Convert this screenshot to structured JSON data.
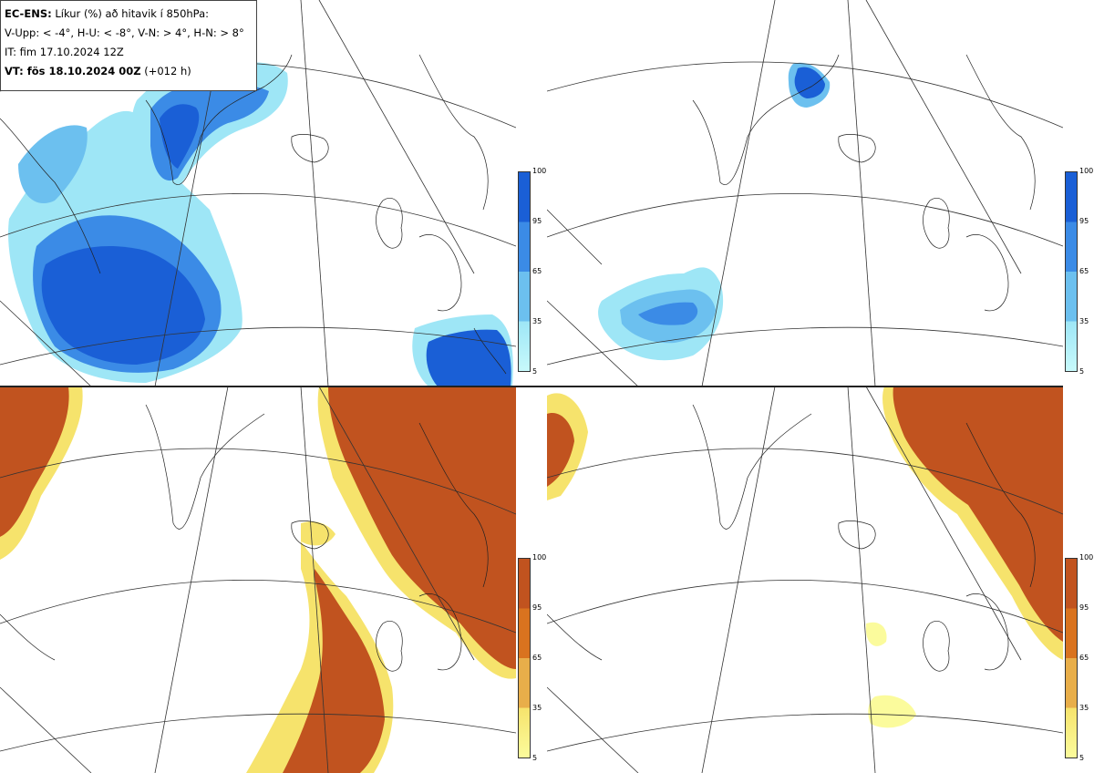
{
  "legend": {
    "line1_bold": "EC-ENS:",
    "line1_text": "Líkur (%) að hitavik í 850hPa:",
    "line2": "V-Upp: < -4°, H-U: < -8°, V-N: > 4°, H-N: > 8°",
    "line3": "IT: fim 17.10.2024 12Z",
    "line4_bold": "VT: fös 18.10.2024 00Z",
    "line4_text": "(+012 h)"
  },
  "colorbars": {
    "blue": {
      "ticks": [
        "100",
        "95",
        "65",
        "35",
        "5"
      ],
      "colors": [
        "#1a5fd6",
        "#3b8be6",
        "#6cc0ef",
        "#9ee6f6",
        "#c7f9fb"
      ]
    },
    "orange": {
      "ticks": [
        "100",
        "95",
        "65",
        "35",
        "5"
      ],
      "colors": [
        "#c1531f",
        "#d9731f",
        "#e8ae4a",
        "#f6e36c",
        "#fbfb9c"
      ]
    }
  },
  "panels": [
    {
      "name": "V-Upp",
      "scheme": "blue"
    },
    {
      "name": "H-U",
      "scheme": "blue"
    },
    {
      "name": "V-N",
      "scheme": "orange"
    },
    {
      "name": "H-N",
      "scheme": "orange"
    }
  ]
}
